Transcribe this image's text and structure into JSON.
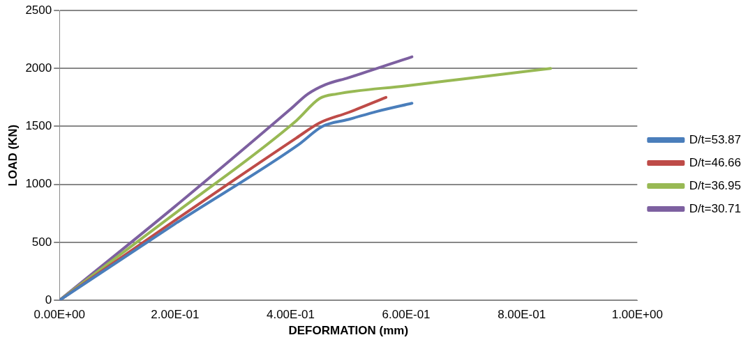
{
  "chart_data": {
    "type": "line",
    "xlabel": "DEFORMATION (mm)",
    "ylabel": "LOAD (KN)",
    "xlim": [
      0,
      1
    ],
    "xticks": [
      {
        "value": 0,
        "label": "0.00E+00"
      },
      {
        "value": 0.2,
        "label": "2.00E-01"
      },
      {
        "value": 0.4,
        "label": "4.00E-01"
      },
      {
        "value": 0.6,
        "label": "6.00E-01"
      },
      {
        "value": 0.8,
        "label": "8.00E-01"
      },
      {
        "value": 1,
        "label": "1.00E+00"
      }
    ],
    "ylim": [
      0,
      2500
    ],
    "yticks": [
      0,
      500,
      1000,
      1500,
      2000,
      2500
    ],
    "grid": "y",
    "legend": "right",
    "marker": "none",
    "series": [
      {
        "name": "D/t=53.87",
        "color": "#4a7ebb",
        "x": [
          0,
          0.2,
          0.413,
          0.455,
          0.5,
          0.55,
          0.61
        ],
        "values": [
          0,
          660,
          1340,
          1500,
          1560,
          1630,
          1700
        ]
      },
      {
        "name": "D/t=46.66",
        "color": "#be4b48",
        "x": [
          0,
          0.2,
          0.41,
          0.45,
          0.5,
          0.565
        ],
        "values": [
          0,
          690,
          1400,
          1530,
          1620,
          1750
        ]
      },
      {
        "name": "D/t=36.95",
        "color": "#98b954",
        "x": [
          0,
          0.2,
          0.41,
          0.45,
          0.48,
          0.6,
          0.7,
          0.85
        ],
        "values": [
          0,
          750,
          1550,
          1740,
          1780,
          1850,
          1910,
          2000
        ]
      },
      {
        "name": "D/t=30.71",
        "color": "#7d60a0",
        "x": [
          0,
          0.2,
          0.4,
          0.43,
          0.46,
          0.5,
          0.61
        ],
        "values": [
          0,
          810,
          1650,
          1780,
          1860,
          1920,
          2100
        ]
      }
    ]
  }
}
